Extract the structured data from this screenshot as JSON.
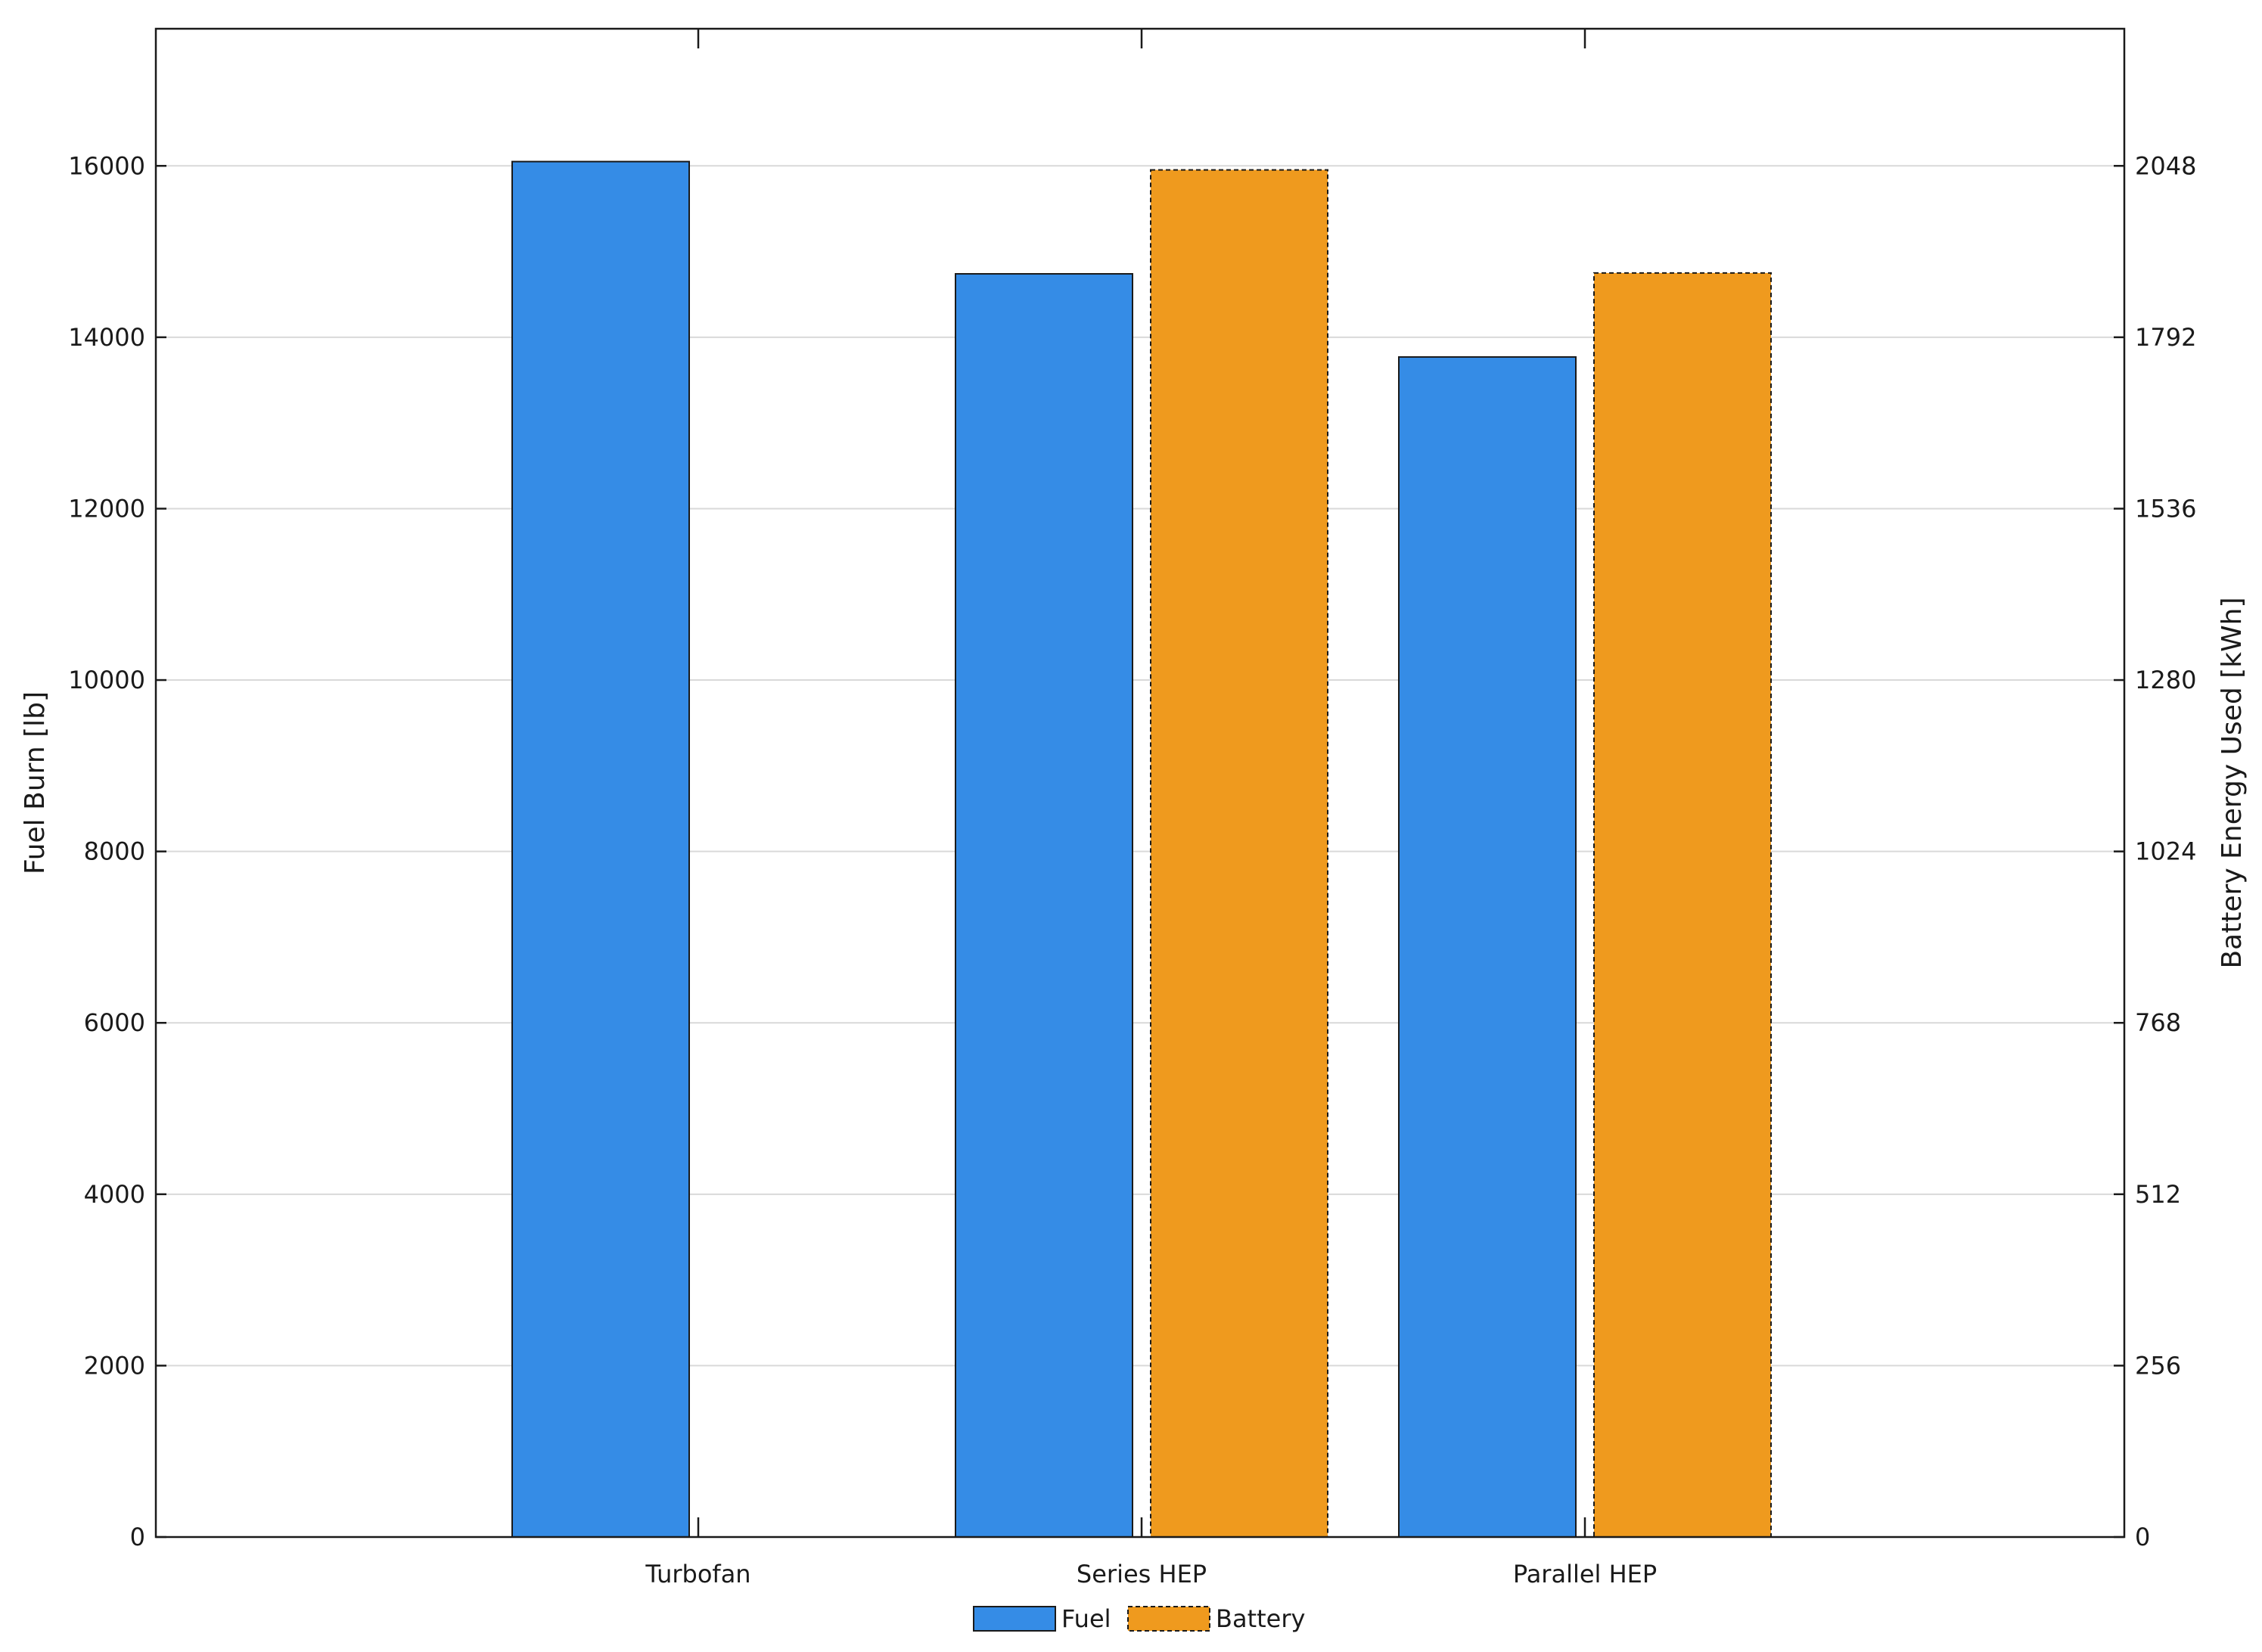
{
  "chart_data": {
    "type": "bar",
    "categories": [
      "Turbofan",
      "Series HEP",
      "Parallel HEP"
    ],
    "series": [
      {
        "name": "Fuel",
        "axis": "left",
        "color": "#358ce6",
        "border": "solid",
        "values": [
          16050,
          14740,
          13770
        ]
      },
      {
        "name": "Battery",
        "axis": "right",
        "color": "#ef9a1e",
        "border": "dashed",
        "values": [
          null,
          2042,
          1888
        ]
      }
    ],
    "ylabel": "Fuel Burn [lb]",
    "y2label": "Battery Energy Used [kWh]",
    "ylim": [
      0,
      17600
    ],
    "y2lim": [
      0,
      2252.8
    ],
    "yticks": [
      "0",
      "2000",
      "4000",
      "6000",
      "8000",
      "10000",
      "12000",
      "14000",
      "16000"
    ],
    "y2ticks": [
      "0",
      "256",
      "512",
      "768",
      "1024",
      "1280",
      "1536",
      "1792",
      "2048"
    ],
    "grid": "horizontal",
    "legend": "bottom-center"
  }
}
